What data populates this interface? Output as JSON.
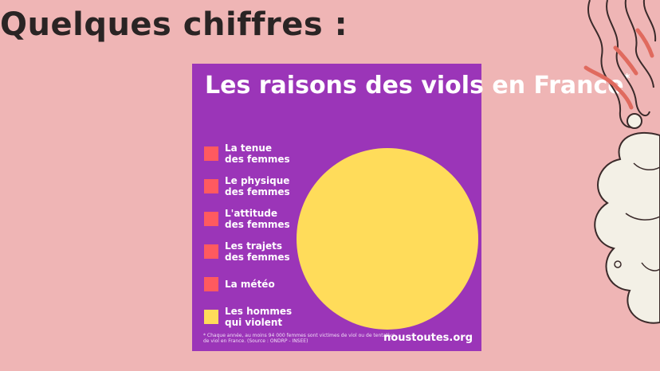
{
  "slide": {
    "title": "Quelques chiffres :"
  },
  "colors": {
    "background": "#efb5b5",
    "card": "#9b35b8",
    "slice_other": "#ff5a5f",
    "slice_men": "#ffdc5a"
  },
  "decoration_icon": "smoke-cloud-icon",
  "chart_data": {
    "type": "pie",
    "title": "Les raisons des viols en France",
    "title_mark": "*",
    "categories": [
      "La tenue\ndes femmes",
      "Le physique\ndes femmes",
      "L'attitude\ndes femmes",
      "Les trajets\ndes femmes",
      "La météo",
      "Les hommes\nqui violent"
    ],
    "values": [
      0,
      0,
      0,
      0,
      0,
      100
    ],
    "colors": [
      "#ff5a5f",
      "#ff5a5f",
      "#ff5a5f",
      "#ff5a5f",
      "#ff5a5f",
      "#ffdc5a"
    ],
    "legend_position": "left",
    "footnote": "* Chaque année, au moins 94 000 femmes sont victimes de viol ou de tentative de viol en France. (Source : ONDRP - INSEE)",
    "source_site": "noustoutes.org"
  }
}
